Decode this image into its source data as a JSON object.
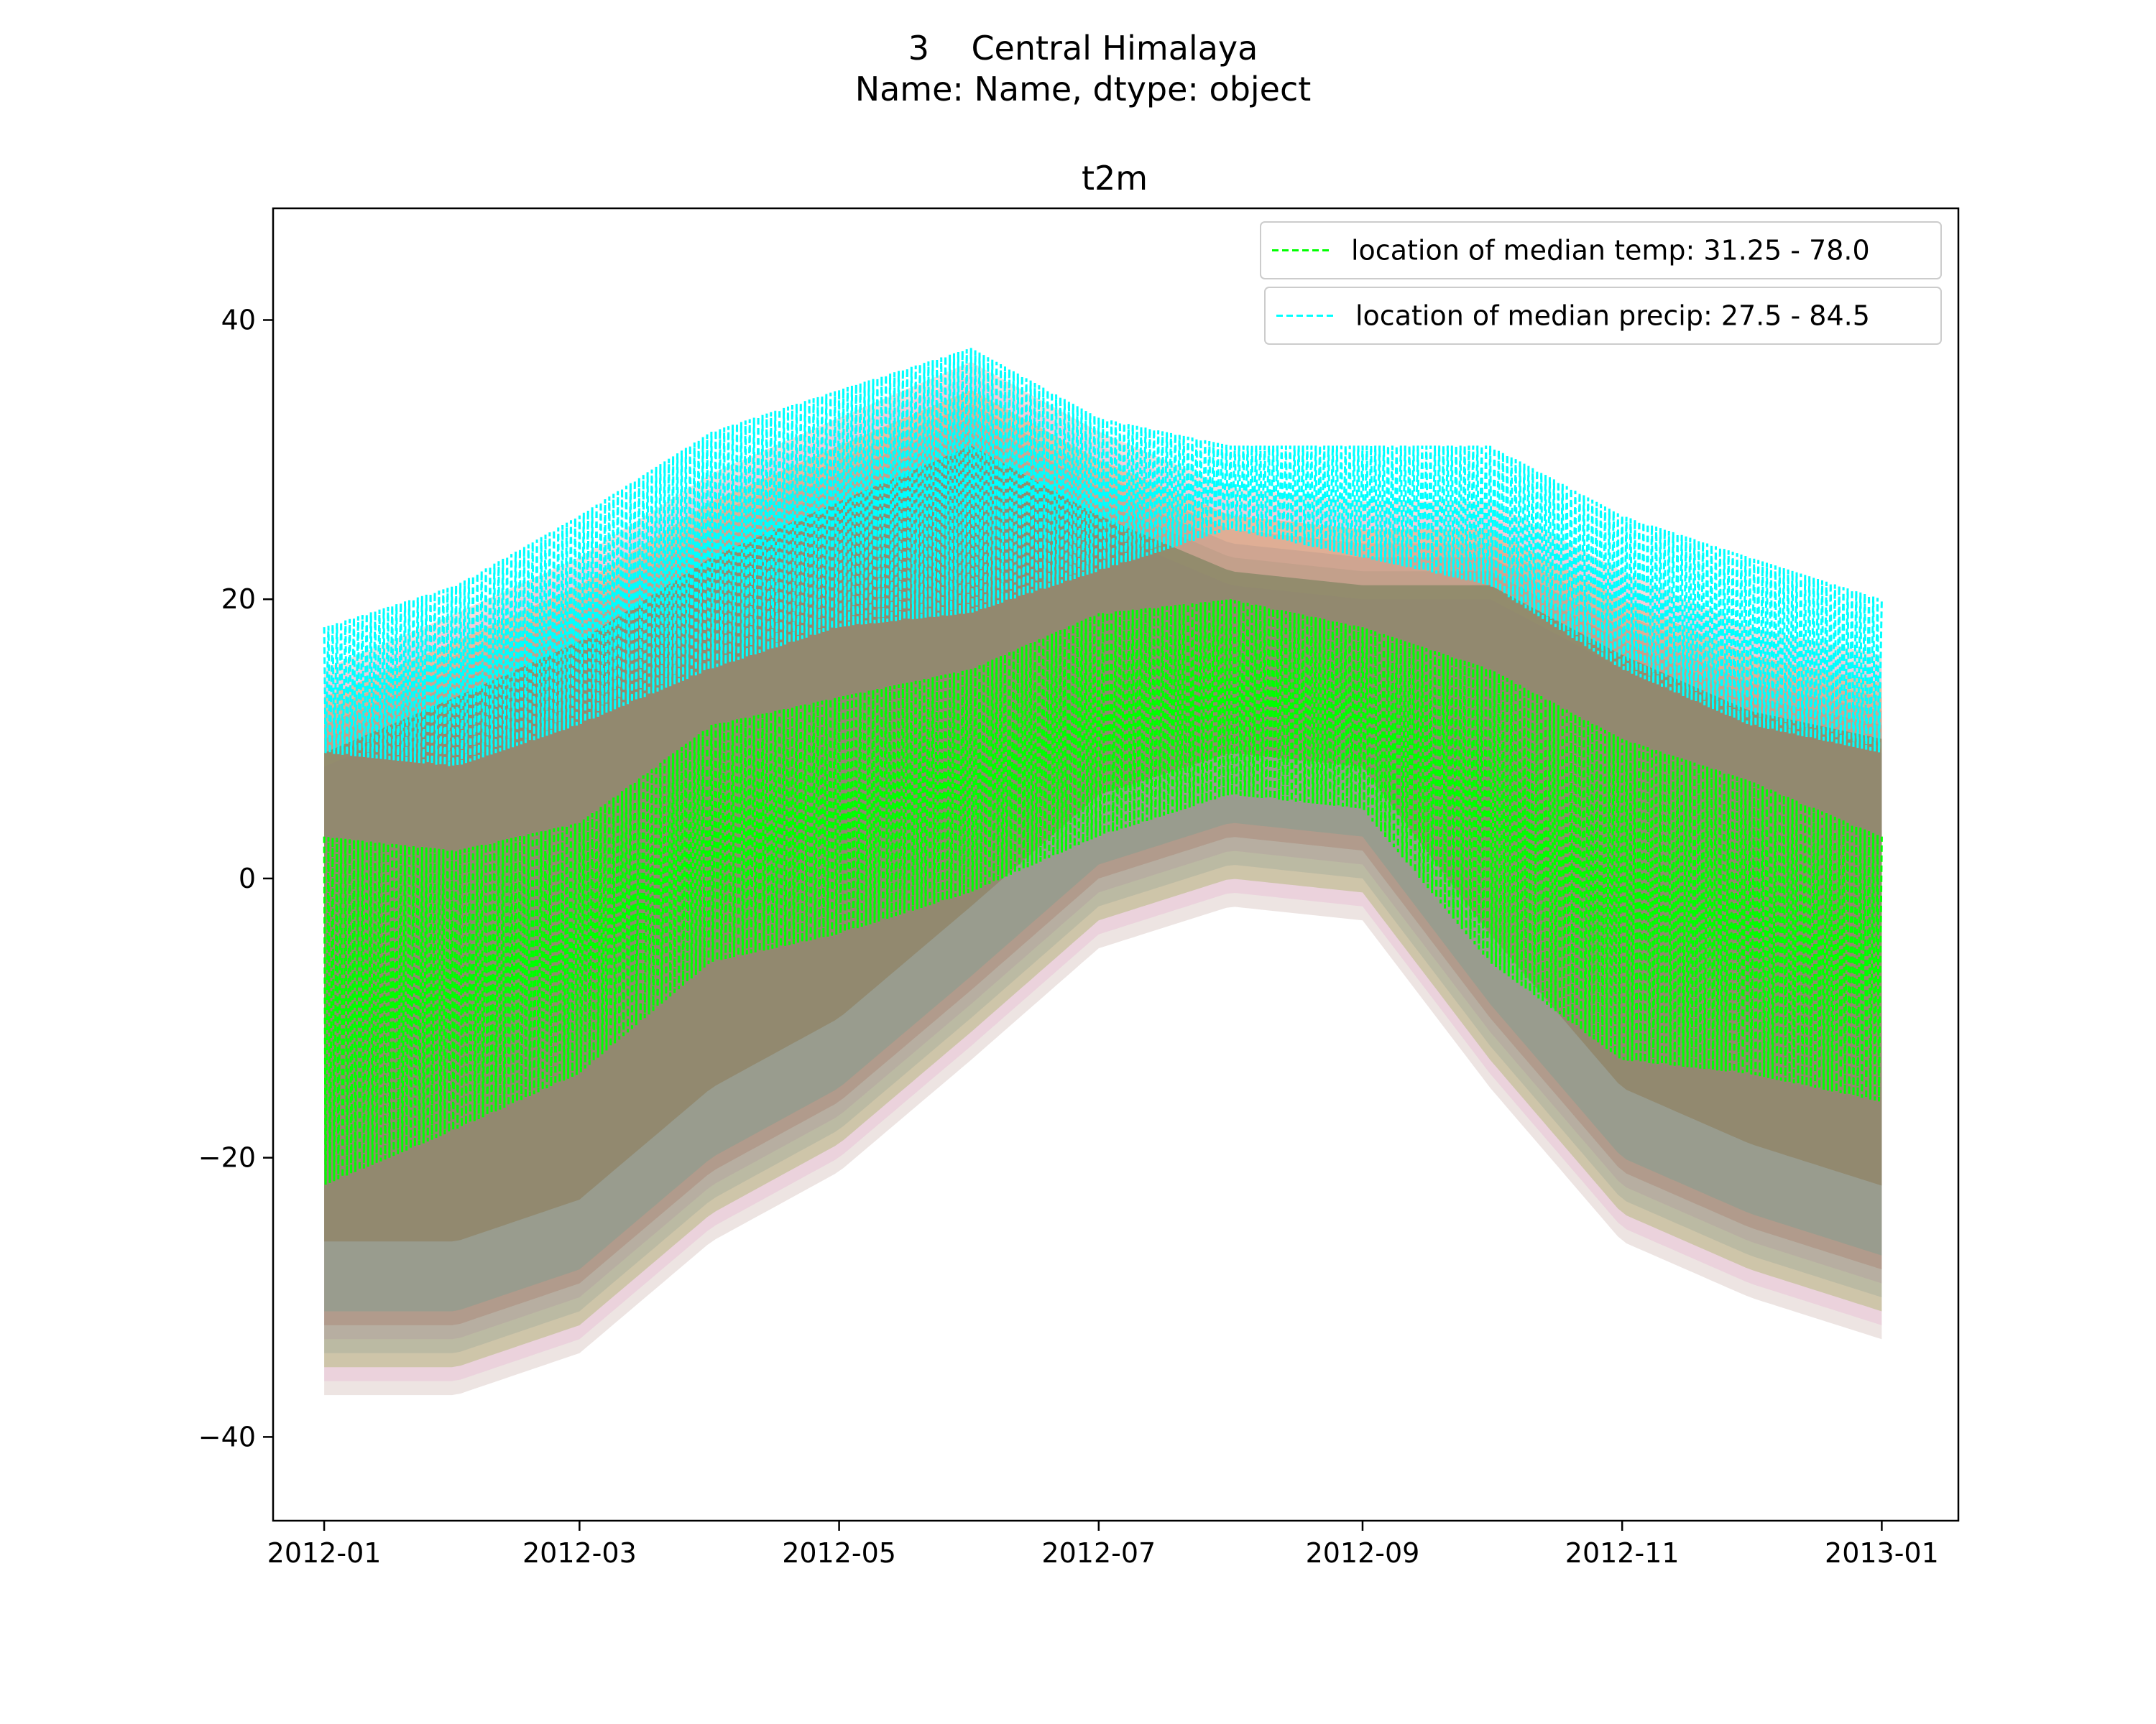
{
  "figure": {
    "suptitle_line1": "3    Central Himalaya",
    "suptitle_line2": "Name: Name, dtype: object"
  },
  "chart_data": {
    "type": "line",
    "title": "t2m",
    "xlabel": "",
    "ylabel": "",
    "x_is_date": true,
    "xlim": [
      "2011-12-20",
      "2013-01-19"
    ],
    "ylim": [
      -46,
      48
    ],
    "x_ticks": [
      "2012-01",
      "2012-03",
      "2012-05",
      "2012-07",
      "2012-09",
      "2012-11",
      "2013-01"
    ],
    "y_ticks": [
      -40,
      -20,
      0,
      20,
      40
    ],
    "y_tick_labels": [
      "−40",
      "−20",
      "0",
      "20",
      "40"
    ],
    "grid": false,
    "legend_position": "top-right",
    "legend": [
      {
        "label": "location of median temp: 31.25 - 78.0",
        "color": "#00ff00",
        "style": "dashed"
      },
      {
        "label": "location of median precip: 27.5 - 84.5",
        "color": "#00ffff",
        "style": "dashed"
      }
    ],
    "background_bands": {
      "description_colors": [
        "#1f77b4",
        "#ff7f0e",
        "#2ca02c",
        "#d62728",
        "#9467bd",
        "#8c564b",
        "#e377c2",
        "#7f7f7f",
        "#bcbd22",
        "#17becf"
      ],
      "dates": [
        "2012-01-01",
        "2012-02-01",
        "2012-03-01",
        "2012-04-01",
        "2012-05-01",
        "2012-06-01",
        "2012-07-01",
        "2012-08-01",
        "2012-09-01",
        "2012-10-01",
        "2012-11-01",
        "2012-12-01",
        "2013-01-01"
      ],
      "upper": [
        19,
        23,
        27,
        33,
        37,
        41,
        36,
        32,
        31,
        31,
        26,
        22,
        20
      ],
      "lower": [
        -38,
        -38,
        -35,
        -27,
        -22,
        -14,
        -6,
        -3,
        -4,
        -16,
        -27,
        -31,
        -34
      ]
    },
    "series": [
      {
        "name": "location of median precip: 27.5 - 84.5",
        "color": "#00ffff",
        "dates": [
          "2012-01-01",
          "2012-02-01",
          "2012-03-01",
          "2012-04-01",
          "2012-05-01",
          "2012-06-01",
          "2012-07-01",
          "2012-08-01",
          "2012-09-01",
          "2012-10-01",
          "2012-11-01",
          "2012-12-01",
          "2013-01-01"
        ],
        "max": [
          18,
          21,
          26,
          32,
          35,
          38,
          33,
          31,
          31,
          31,
          26,
          23,
          20
        ],
        "min": [
          9,
          8,
          11,
          15,
          18,
          19,
          22,
          25,
          23,
          21,
          15,
          11,
          9
        ]
      },
      {
        "name": "location of median temp: 31.25 - 78.0",
        "color": "#00ff00",
        "dates": [
          "2012-01-01",
          "2012-02-01",
          "2012-03-01",
          "2012-04-01",
          "2012-05-01",
          "2012-06-01",
          "2012-07-01",
          "2012-08-01",
          "2012-09-01",
          "2012-10-01",
          "2012-11-01",
          "2012-12-01",
          "2013-01-01"
        ],
        "max": [
          3,
          2,
          4,
          11,
          13,
          15,
          19,
          20,
          18,
          15,
          10,
          7,
          3
        ],
        "min": [
          -22,
          -18,
          -14,
          -6,
          -4,
          -1,
          3,
          6,
          5,
          -6,
          -13,
          -14,
          -16
        ]
      }
    ]
  }
}
